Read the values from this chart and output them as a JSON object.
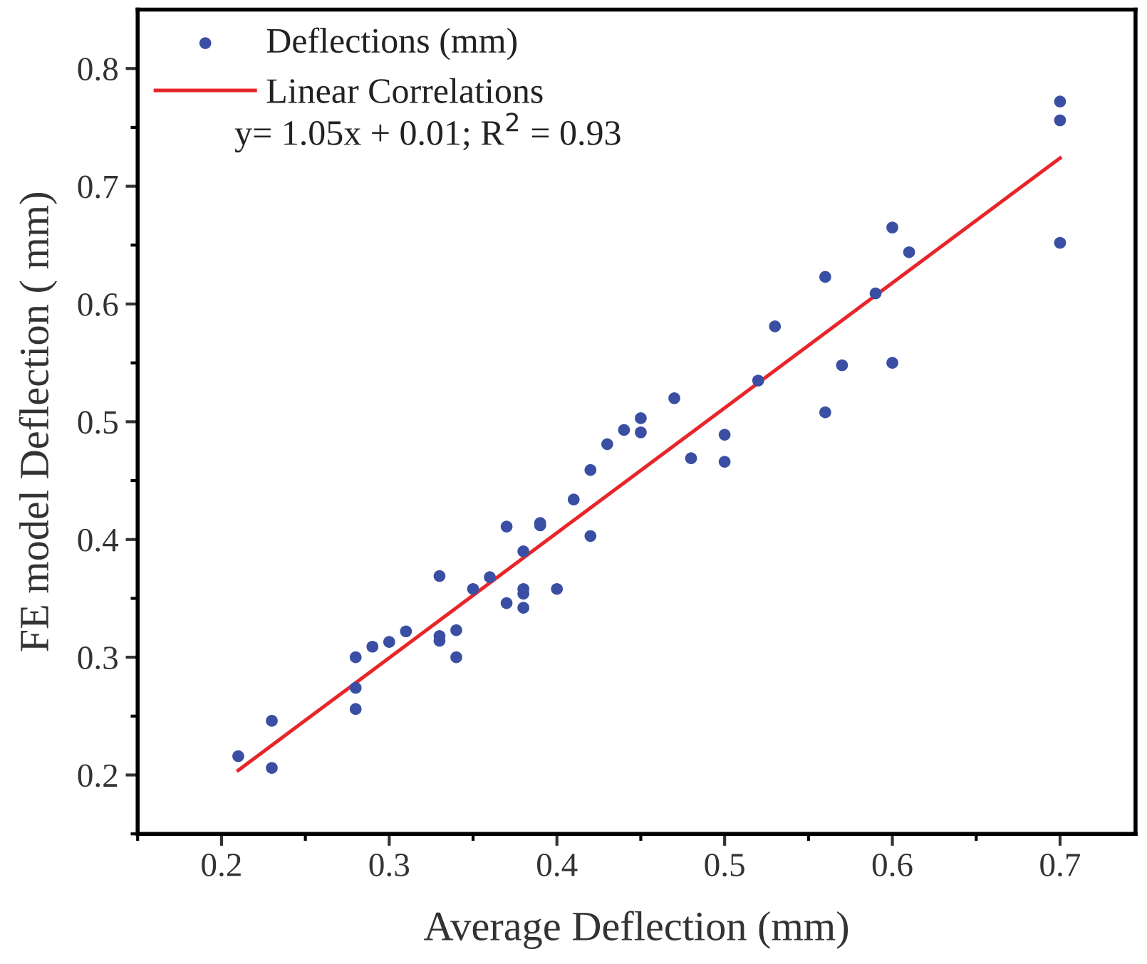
{
  "chart_data": {
    "type": "scatter",
    "xlabel": "Average Deflection (mm)",
    "ylabel": "FE model Deflection ( mm)",
    "xlim": [
      0.15,
      0.745
    ],
    "ylim": [
      0.15,
      0.85
    ],
    "xticks": [
      0.2,
      0.3,
      0.4,
      0.5,
      0.6,
      0.7
    ],
    "yticks": [
      0.2,
      0.3,
      0.4,
      0.5,
      0.6,
      0.7,
      0.8
    ],
    "grid": false,
    "legend": "top left",
    "marker": "circle",
    "annotations": [
      "y= 1.05x + 0.01; R$^{2}$ = 0.93"
    ],
    "series": [
      {
        "name": "Deflections (mm)",
        "color": "#3a4fa3",
        "x": [
          0.21,
          0.23,
          0.23,
          0.28,
          0.28,
          0.28,
          0.29,
          0.3,
          0.31,
          0.33,
          0.33,
          0.33,
          0.34,
          0.34,
          0.35,
          0.36,
          0.37,
          0.37,
          0.38,
          0.38,
          0.38,
          0.38,
          0.39,
          0.39,
          0.4,
          0.41,
          0.42,
          0.42,
          0.43,
          0.44,
          0.45,
          0.45,
          0.47,
          0.48,
          0.5,
          0.5,
          0.52,
          0.53,
          0.56,
          0.56,
          0.57,
          0.59,
          0.6,
          0.6,
          0.61,
          0.7,
          0.7,
          0.7
        ],
        "values": [
          0.216,
          0.246,
          0.206,
          0.3,
          0.274,
          0.256,
          0.309,
          0.313,
          0.322,
          0.369,
          0.318,
          0.314,
          0.323,
          0.3,
          0.358,
          0.368,
          0.411,
          0.346,
          0.39,
          0.358,
          0.354,
          0.342,
          0.414,
          0.412,
          0.358,
          0.434,
          0.459,
          0.403,
          0.481,
          0.493,
          0.503,
          0.491,
          0.52,
          0.469,
          0.489,
          0.466,
          0.535,
          0.581,
          0.623,
          0.508,
          0.548,
          0.609,
          0.665,
          0.55,
          0.644,
          0.772,
          0.756,
          0.652
        ]
      },
      {
        "name": "Linear Correlations",
        "type": "line",
        "color": "#e8262a",
        "marker": "none",
        "line_style": "solid",
        "x": [
          0.21,
          0.7
        ],
        "values": [
          0.204,
          0.724
        ]
      }
    ]
  }
}
